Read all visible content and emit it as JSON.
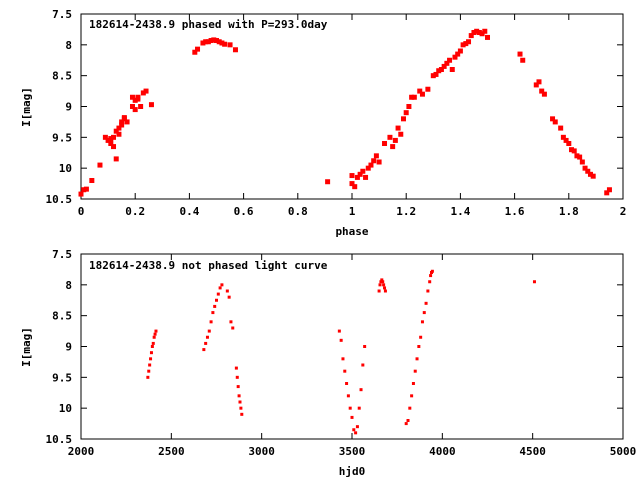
{
  "chart_data": [
    {
      "type": "scatter",
      "title": "182614-2438.9 phased with P=293.0day",
      "xlabel": "phase",
      "ylabel": "I[mag]",
      "xlim": [
        0,
        2
      ],
      "ylim": [
        10.5,
        7.5
      ],
      "y_inverted": true,
      "xticks": [
        "0",
        "0.2",
        "0.4",
        "0.6",
        "0.8",
        "1",
        "1.2",
        "1.4",
        "1.6",
        "1.8",
        "2"
      ],
      "yticks": [
        "7.5",
        "8",
        "8.5",
        "9",
        "9.5",
        "10",
        "10.5"
      ],
      "grid": false,
      "marker_color": "#ff0000",
      "series": [
        {
          "x": [
            0.0,
            0.01,
            0.02,
            0.04,
            0.07,
            0.09,
            0.1,
            0.11,
            0.11,
            0.12,
            0.12,
            0.13,
            0.13,
            0.14,
            0.14,
            0.15,
            0.15,
            0.16,
            0.16,
            0.17,
            0.19,
            0.19,
            0.2,
            0.2,
            0.21,
            0.21,
            0.22,
            0.23,
            0.24,
            0.26,
            0.42,
            0.43,
            0.45,
            0.46,
            0.47,
            0.48,
            0.49,
            0.5,
            0.51,
            0.52,
            0.53,
            0.55,
            0.57,
            0.91,
            1.0,
            1.0,
            1.01,
            1.02,
            1.03,
            1.04,
            1.05,
            1.06,
            1.07,
            1.08,
            1.09,
            1.1,
            1.12,
            1.14,
            1.15,
            1.16,
            1.17,
            1.18,
            1.19,
            1.2,
            1.21,
            1.22,
            1.23,
            1.25,
            1.26,
            1.28,
            1.3,
            1.31,
            1.32,
            1.33,
            1.34,
            1.35,
            1.36,
            1.37,
            1.38,
            1.39,
            1.4,
            1.41,
            1.42,
            1.43,
            1.44,
            1.45,
            1.46,
            1.47,
            1.48,
            1.49,
            1.5,
            1.62,
            1.63,
            1.68,
            1.69,
            1.7,
            1.71,
            1.74,
            1.75,
            1.77,
            1.78,
            1.79,
            1.8,
            1.81,
            1.82,
            1.83,
            1.84,
            1.85,
            1.86,
            1.87,
            1.88,
            1.89,
            1.94,
            1.95
          ],
          "y": [
            10.42,
            10.35,
            10.34,
            10.2,
            9.95,
            9.5,
            9.55,
            9.6,
            9.52,
            9.65,
            9.5,
            9.4,
            9.85,
            9.35,
            9.45,
            9.3,
            9.25,
            9.2,
            9.18,
            9.25,
            9.0,
            8.85,
            9.05,
            8.9,
            8.88,
            8.85,
            9.0,
            8.78,
            8.75,
            8.97,
            8.12,
            8.07,
            7.97,
            7.95,
            7.95,
            7.93,
            7.92,
            7.93,
            7.95,
            7.97,
            7.99,
            8.0,
            8.08,
            10.22,
            10.12,
            10.25,
            10.3,
            10.15,
            10.1,
            10.05,
            10.15,
            10.0,
            9.95,
            9.88,
            9.8,
            9.9,
            9.6,
            9.5,
            9.65,
            9.55,
            9.35,
            9.45,
            9.2,
            9.1,
            9.0,
            8.85,
            8.85,
            8.75,
            8.8,
            8.72,
            8.5,
            8.48,
            8.42,
            8.4,
            8.35,
            8.3,
            8.25,
            8.4,
            8.2,
            8.15,
            8.1,
            8.0,
            7.98,
            7.95,
            7.85,
            7.8,
            7.78,
            7.8,
            7.82,
            7.78,
            7.88,
            8.15,
            8.25,
            8.65,
            8.6,
            8.75,
            8.8,
            9.2,
            9.25,
            9.35,
            9.5,
            9.55,
            9.6,
            9.7,
            9.72,
            9.8,
            9.82,
            9.9,
            10.0,
            10.05,
            10.1,
            10.13,
            10.4,
            10.35
          ]
        }
      ]
    },
    {
      "type": "scatter",
      "title": "182614-2438.9 not phased light curve",
      "xlabel": "hjd0",
      "ylabel": "I[mag]",
      "xlim": [
        2000,
        5000
      ],
      "ylim": [
        10.5,
        7.5
      ],
      "y_inverted": true,
      "xticks": [
        "2000",
        "2500",
        "3000",
        "3500",
        "4000",
        "4500",
        "5000"
      ],
      "yticks": [
        "7.5",
        "8",
        "8.5",
        "9",
        "9.5",
        "10",
        "10.5"
      ],
      "grid": false,
      "marker_color": "#ff0000",
      "series": [
        {
          "x": [
            2370,
            2375,
            2380,
            2385,
            2390,
            2395,
            2400,
            2405,
            2410,
            2415,
            2680,
            2690,
            2700,
            2710,
            2720,
            2730,
            2740,
            2750,
            2760,
            2770,
            2780,
            2810,
            2820,
            2830,
            2840,
            2860,
            2865,
            2870,
            2875,
            2880,
            2885,
            2890,
            3430,
            3440,
            3450,
            3460,
            3470,
            3480,
            3490,
            3500,
            3510,
            3520,
            3530,
            3540,
            3550,
            3560,
            3570,
            3650,
            3655,
            3660,
            3665,
            3670,
            3675,
            3680,
            3685,
            3800,
            3810,
            3820,
            3830,
            3840,
            3850,
            3860,
            3870,
            3880,
            3890,
            3900,
            3910,
            3920,
            3930,
            3935,
            3940,
            3945,
            4510
          ],
          "y": [
            9.5,
            9.4,
            9.3,
            9.2,
            9.1,
            9.0,
            8.95,
            8.85,
            8.8,
            8.75,
            9.05,
            8.95,
            8.85,
            8.75,
            8.6,
            8.45,
            8.35,
            8.25,
            8.15,
            8.05,
            8.0,
            8.1,
            8.2,
            8.6,
            8.7,
            9.35,
            9.5,
            9.65,
            9.8,
            9.9,
            10.0,
            10.1,
            8.75,
            8.9,
            9.2,
            9.4,
            9.6,
            9.8,
            10.0,
            10.15,
            10.35,
            10.4,
            10.3,
            10.0,
            9.7,
            9.3,
            9.0,
            8.1,
            8.0,
            7.95,
            7.92,
            7.95,
            8.0,
            8.05,
            8.1,
            10.25,
            10.2,
            10.0,
            9.8,
            9.6,
            9.4,
            9.2,
            9.0,
            8.85,
            8.6,
            8.45,
            8.3,
            8.1,
            7.95,
            7.85,
            7.8,
            7.78,
            7.95
          ]
        }
      ]
    }
  ]
}
